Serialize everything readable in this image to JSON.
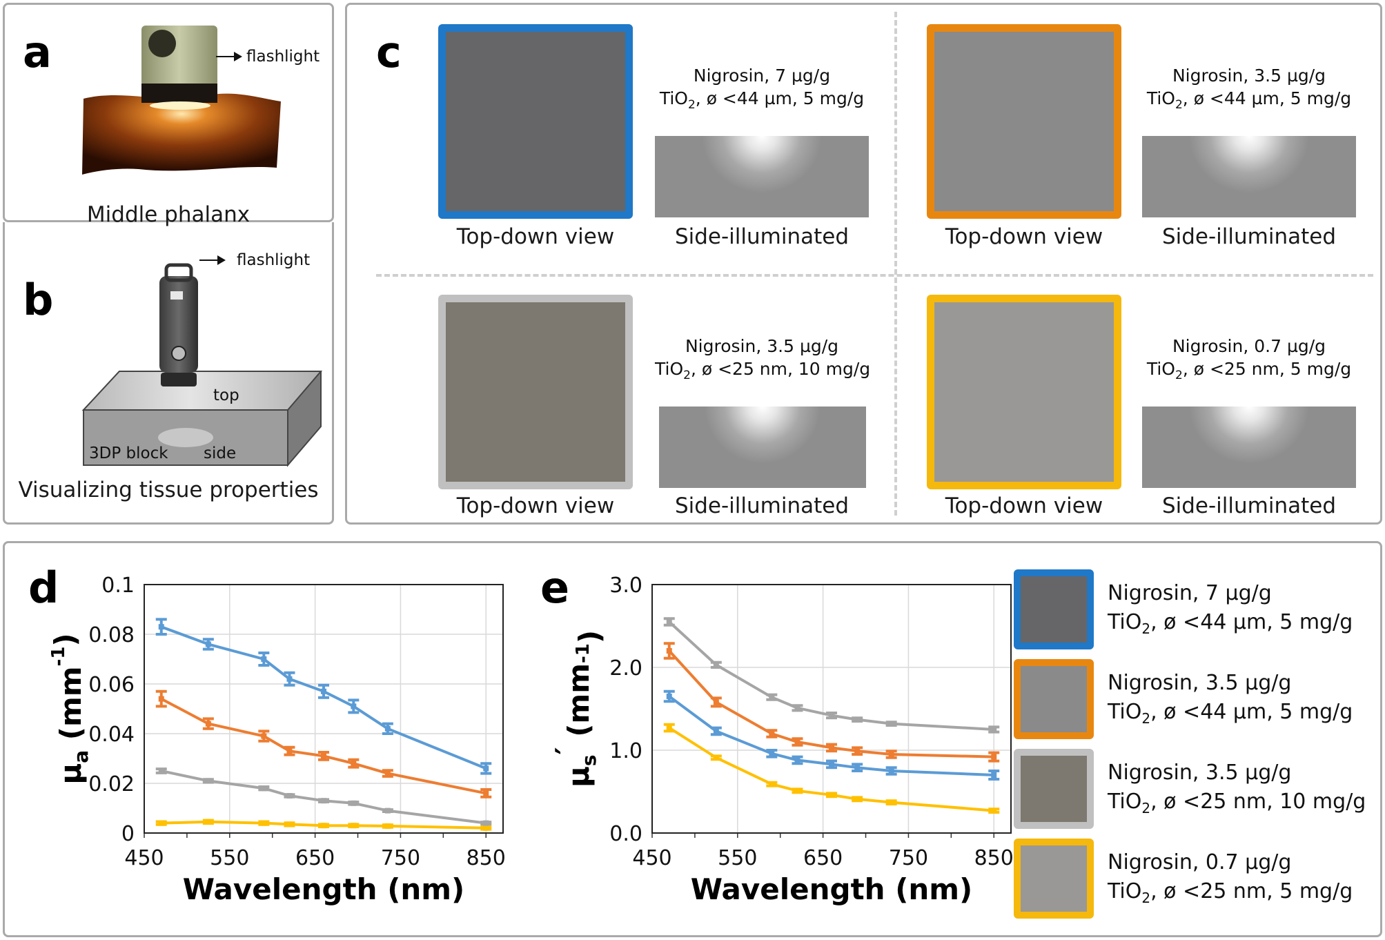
{
  "panels": {
    "a": {
      "label": "a",
      "flashlight": "flashlight",
      "caption": "Middle phalanx"
    },
    "b": {
      "label": "b",
      "flashlight": "flashlight",
      "top": "top",
      "side": "side",
      "block": "3DP block",
      "caption": "Visualizing tissue properties"
    },
    "c": {
      "label": "c",
      "samples": [
        {
          "line1": "Nigrosin, 7 µg/g",
          "tio": "TiO",
          "sub": "2",
          "line2": ", ø <44 µm, 5 mg/g",
          "top_caption": "Top-down view",
          "side_caption": "Side-illuminated",
          "border": "#1f78c8",
          "fill": "#666668"
        },
        {
          "line1": "Nigrosin, 3.5 µg/g",
          "tio": "TiO",
          "sub": "2",
          "line2": ", ø <44 µm, 5 mg/g",
          "top_caption": "Top-down view",
          "side_caption": "Side-illuminated",
          "border": "#e8870f",
          "fill": "#8a8a8a"
        },
        {
          "line1": "Nigrosin, 3.5 µg/g",
          "tio": "TiO",
          "sub": "2",
          "line2": ", ø <25 nm, 10 mg/g",
          "top_caption": "Top-down view",
          "side_caption": "Side-illuminated",
          "border": "#c0c0c0",
          "fill": "#7d7870"
        },
        {
          "line1": "Nigrosin, 0.7 µg/g",
          "tio": "TiO",
          "sub": "2",
          "line2": ", ø <25 nm, 5 mg/g",
          "top_caption": "Top-down view",
          "side_caption": "Side-illuminated",
          "border": "#f5b80c",
          "fill": "#9a9896"
        }
      ]
    },
    "d": {
      "label": "d"
    },
    "e": {
      "label": "e"
    }
  },
  "legend": [
    {
      "line1": "Nigrosin, 7 µg/g",
      "tio": "TiO",
      "sub": "2",
      "line2": ", ø <44 µm, 5 mg/g",
      "border": "#1f78c8",
      "fill": "#666668"
    },
    {
      "line1": "Nigrosin, 3.5 µg/g",
      "tio": "TiO",
      "sub": "2",
      "line2": ", ø <44 µm, 5 mg/g",
      "border": "#e8870f",
      "fill": "#8a8a8a"
    },
    {
      "line1": "Nigrosin, 3.5 µg/g",
      "tio": "TiO",
      "sub": "2",
      "line2": ", ø <25 nm, 10 mg/g",
      "border": "#c0c0c0",
      "fill": "#7d7870"
    },
    {
      "line1": "Nigrosin, 0.7 µg/g",
      "tio": "TiO",
      "sub": "2",
      "line2": ", ø <25 nm, 5 mg/g",
      "border": "#f5b80c",
      "fill": "#9a9896"
    }
  ],
  "chart_data": [
    {
      "type": "line",
      "id": "d",
      "xlabel": "Wavelength (nm)",
      "ylabel_main": "μ",
      "ylabel_sub": "a",
      "ylabel_unit": " (mm",
      "ylabel_sup": "-1",
      "ylabel_close": ")",
      "xlim": [
        450,
        870
      ],
      "ylim": [
        0,
        0.1
      ],
      "xticks": [
        450,
        550,
        650,
        750,
        850
      ],
      "xtick_labels": [
        "450",
        "550",
        "650",
        "750",
        "850"
      ],
      "yticks": [
        0,
        0.02,
        0.04,
        0.06,
        0.08,
        0.1
      ],
      "ytick_labels": [
        "0",
        "0.02",
        "0.04",
        "0.06",
        "0.08",
        "0.1"
      ],
      "x": [
        470,
        525,
        590,
        620,
        660,
        695,
        735,
        850
      ],
      "series": [
        {
          "name": "Nigrosin 7 µg/g, TiO2 <44 µm 5 mg/g",
          "color": "#5b9bd5",
          "values": [
            0.083,
            0.076,
            0.07,
            0.062,
            0.057,
            0.051,
            0.042,
            0.026
          ],
          "err": [
            0.003,
            0.002,
            0.0025,
            0.0025,
            0.0025,
            0.0025,
            0.002,
            0.002
          ]
        },
        {
          "name": "Nigrosin 3.5 µg/g, TiO2 <44 µm 5 mg/g",
          "color": "#ed7d31",
          "values": [
            0.054,
            0.044,
            0.039,
            0.033,
            0.031,
            0.028,
            0.024,
            0.016
          ],
          "err": [
            0.003,
            0.002,
            0.002,
            0.0015,
            0.0015,
            0.0015,
            0.0012,
            0.0015
          ]
        },
        {
          "name": "Nigrosin 3.5 µg/g, TiO2 <25 nm 10 mg/g",
          "color": "#a5a5a5",
          "values": [
            0.025,
            0.021,
            0.018,
            0.015,
            0.013,
            0.012,
            0.009,
            0.004
          ],
          "err": [
            0.0008,
            0.0006,
            0.0006,
            0.0005,
            0.0005,
            0.0005,
            0.0004,
            0.0004
          ]
        },
        {
          "name": "Nigrosin 0.7 µg/g, TiO2 <25 nm 5 mg/g",
          "color": "#ffc000",
          "values": [
            0.004,
            0.0045,
            0.004,
            0.0035,
            0.003,
            0.003,
            0.0028,
            0.002
          ],
          "err": [
            0.0006,
            0.0006,
            0.0006,
            0.0006,
            0.0005,
            0.0005,
            0.0005,
            0.0005
          ]
        }
      ]
    },
    {
      "type": "line",
      "id": "e",
      "xlabel": "Wavelength (nm)",
      "ylabel_main": "μ",
      "ylabel_sub": "s",
      "ylabel_prime": "′",
      "ylabel_unit": " (mm",
      "ylabel_sup": "-1",
      "ylabel_close": ")",
      "xlim": [
        450,
        870
      ],
      "ylim": [
        0,
        3.0
      ],
      "xticks": [
        450,
        550,
        650,
        750,
        850
      ],
      "xtick_labels": [
        "450",
        "550",
        "650",
        "750",
        "850"
      ],
      "yticks": [
        0,
        1,
        2,
        3
      ],
      "ytick_labels": [
        "0.0",
        "1.0",
        "2.0",
        "3.0"
      ],
      "x": [
        470,
        525,
        590,
        620,
        660,
        690,
        730,
        850
      ],
      "series": [
        {
          "name": "Nigrosin 7 µg/g, TiO2 <44 µm 5 mg/g",
          "color": "#5b9bd5",
          "values": [
            1.65,
            1.23,
            0.96,
            0.88,
            0.83,
            0.79,
            0.75,
            0.7
          ],
          "err": [
            0.06,
            0.04,
            0.04,
            0.04,
            0.04,
            0.04,
            0.04,
            0.05
          ]
        },
        {
          "name": "Nigrosin 3.5 µg/g, TiO2 <44 µm 5 mg/g",
          "color": "#ed7d31",
          "values": [
            2.2,
            1.58,
            1.2,
            1.1,
            1.03,
            0.99,
            0.95,
            0.92
          ],
          "err": [
            0.09,
            0.05,
            0.04,
            0.04,
            0.04,
            0.04,
            0.04,
            0.05
          ]
        },
        {
          "name": "Nigrosin 3.5 µg/g, TiO2 <25 nm 10 mg/g",
          "color": "#a5a5a5",
          "values": [
            2.55,
            2.03,
            1.64,
            1.51,
            1.42,
            1.37,
            1.32,
            1.25
          ],
          "err": [
            0.04,
            0.03,
            0.03,
            0.03,
            0.03,
            0.02,
            0.02,
            0.03
          ]
        },
        {
          "name": "Nigrosin 0.7 µg/g, TiO2 <25 nm 5 mg/g",
          "color": "#ffc000",
          "values": [
            1.27,
            0.91,
            0.59,
            0.51,
            0.46,
            0.41,
            0.37,
            0.27
          ],
          "err": [
            0.04,
            0.02,
            0.02,
            0.02,
            0.02,
            0.02,
            0.02,
            0.02
          ]
        }
      ]
    }
  ]
}
